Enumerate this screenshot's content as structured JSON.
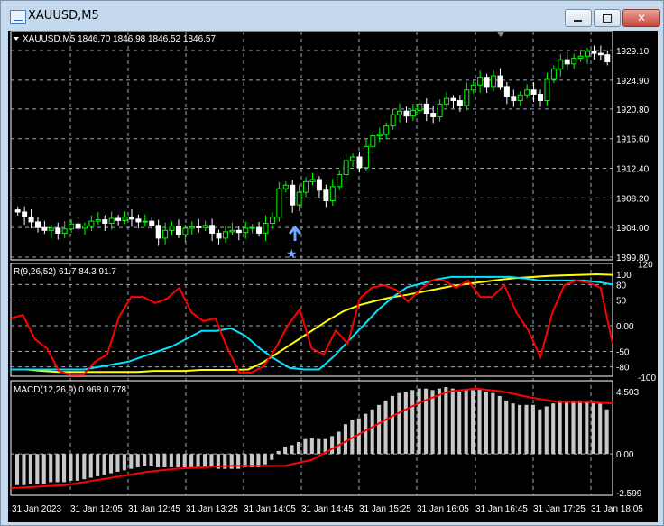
{
  "window": {
    "title": "XAUUSD,M5"
  },
  "chart": {
    "header": "XAUUSD,M5  1846,70 1846.98 1846.52 1846.57",
    "colors": {
      "bull": "#00ff00",
      "bear": "#ffffff",
      "background": "#000000",
      "grid": "#9aa8b8",
      "red": "#ff0000",
      "cyan": "#00e5ff",
      "yellow": "#ffff00",
      "hist": "#c8c8c8",
      "arrow": "#6fa8ff"
    },
    "price_axis": {
      "labels": [
        "1929.10",
        "1924.90",
        "1920.80",
        "1916.60",
        "1912.40",
        "1908.20",
        "1904.00",
        "1899.80"
      ],
      "range": [
        1899.8,
        1929.1
      ]
    },
    "candles_close": [
      1906.2,
      1905.5,
      1904.8,
      1904.0,
      1903.6,
      1903.9,
      1903.2,
      1903.8,
      1904.5,
      1903.9,
      1904.2,
      1904.9,
      1905.1,
      1904.6,
      1905.3,
      1905.0,
      1905.5,
      1905.2,
      1904.8,
      1904.9,
      1904.3,
      1902.5,
      1903.6,
      1904.2,
      1903.0,
      1903.9,
      1904.1,
      1904.0,
      1904.3,
      1903.2,
      1902.5,
      1903.4,
      1903.6,
      1903.3,
      1903.9,
      1904.0,
      1903.2,
      1904.6,
      1905.5,
      1909.5,
      1910.0,
      1907.2,
      1909.0,
      1910.5,
      1910.8,
      1909.3,
      1907.8,
      1909.8,
      1911.5,
      1913.5,
      1914.0,
      1912.5,
      1915.5,
      1917.0,
      1917.2,
      1918.4,
      1920.0,
      1920.5,
      1919.8,
      1920.6,
      1921.5,
      1920.2,
      1919.7,
      1921.5,
      1922.3,
      1922.0,
      1921.3,
      1923.5,
      1924.2,
      1925.3,
      1924.0,
      1925.5,
      1924.0,
      1922.6,
      1922.0,
      1922.8,
      1923.5,
      1922.9,
      1922.0,
      1925.0,
      1926.5,
      1927.8,
      1927.2,
      1928.0,
      1928.3,
      1929.0,
      1928.7,
      1928.5,
      1927.5
    ],
    "indicator": {
      "label": "R(9,26,52) 61.7 84.3 91.7",
      "axis_labels": [
        "120",
        "100",
        "80",
        "50",
        "0.00",
        "-50",
        "-80",
        "-100"
      ],
      "red": [
        14,
        21,
        -26,
        -44,
        -88,
        -96,
        -96,
        -70,
        -56,
        18,
        56,
        56,
        44,
        53,
        74,
        26,
        9,
        14,
        -44,
        -91,
        -91,
        -79,
        -44,
        0,
        32,
        -44,
        -56,
        -9,
        -35,
        53,
        74,
        79,
        70,
        47,
        70,
        88,
        88,
        74,
        88,
        56,
        56,
        79,
        26,
        -9,
        -61,
        26,
        79,
        88,
        84,
        74,
        -35
      ],
      "cyan": [
        -85,
        -85,
        -85,
        -85,
        -85,
        -85,
        -80,
        -75,
        -70,
        -60,
        -50,
        -40,
        -25,
        -10,
        -10,
        -5,
        -20,
        -45,
        -65,
        -82,
        -85,
        -85,
        -60,
        -30,
        0,
        30,
        55,
        75,
        82,
        90,
        95,
        95,
        95,
        95,
        95,
        92,
        88,
        88,
        88,
        88,
        85,
        80
      ],
      "yellow": [
        -85,
        -85,
        -88,
        -90,
        -90,
        -90,
        -90,
        -90,
        -90,
        -88,
        -88,
        -88,
        -86,
        -86,
        -86,
        -85,
        -70,
        -50,
        -30,
        -10,
        10,
        28,
        40,
        48,
        55,
        60,
        66,
        72,
        78,
        82,
        86,
        90,
        93,
        95,
        97,
        98,
        99,
        100,
        99
      ]
    },
    "macd": {
      "label": "MACD(12,26,9) 0.968 0.778",
      "axis_labels": [
        "4.503",
        "0.00",
        "-2.599"
      ],
      "range": [
        -2.599,
        4.503
      ],
      "histogram": [
        -2.1,
        -2.1,
        -2.0,
        -2.0,
        -2.0,
        -1.9,
        -1.9,
        -1.9,
        -1.8,
        -1.8,
        -1.7,
        -1.6,
        -1.5,
        -1.4,
        -1.3,
        -1.2,
        -1.1,
        -1.0,
        -0.9,
        -0.8,
        -0.8,
        -0.9,
        -0.9,
        -0.9,
        -0.9,
        -0.9,
        -0.9,
        -0.9,
        -0.9,
        -0.9,
        -1.0,
        -1.0,
        -1.0,
        -1.0,
        -0.9,
        -0.9,
        -0.9,
        -0.7,
        -0.4,
        0.2,
        0.5,
        0.6,
        0.8,
        1.0,
        1.1,
        1.0,
        1.0,
        1.2,
        1.5,
        2.0,
        2.3,
        2.4,
        2.7,
        3.0,
        3.3,
        3.6,
        3.9,
        4.1,
        4.2,
        4.3,
        4.4,
        4.4,
        4.3,
        4.4,
        4.5,
        4.4,
        4.2,
        4.3,
        4.3,
        4.4,
        4.2,
        4.1,
        3.9,
        3.6,
        3.4,
        3.3,
        3.3,
        3.3,
        3.0,
        3.2,
        3.4,
        3.6,
        3.6,
        3.6,
        3.6,
        3.6,
        3.6,
        3.4,
        3.0
      ],
      "signal": [
        -2.3,
        -2.2,
        -2.1,
        -1.8,
        -1.5,
        -1.2,
        -1.0,
        -0.9,
        -0.8,
        -0.8,
        -0.8,
        -0.4,
        0.6,
        1.6,
        2.6,
        3.5,
        4.2,
        4.4,
        4.2,
        3.8,
        3.5,
        3.5,
        3.4
      ]
    },
    "time_axis": [
      "31 Jan 2023",
      "31 Jan 12:05",
      "31 Jan 12:45",
      "31 Jan 13:25",
      "31 Jan 14:05",
      "31 Jan 14:45",
      "31 Jan 15:25",
      "31 Jan 16:05",
      "31 Jan 16:45",
      "31 Jan 17:25",
      "31 Jan 18:05"
    ]
  }
}
